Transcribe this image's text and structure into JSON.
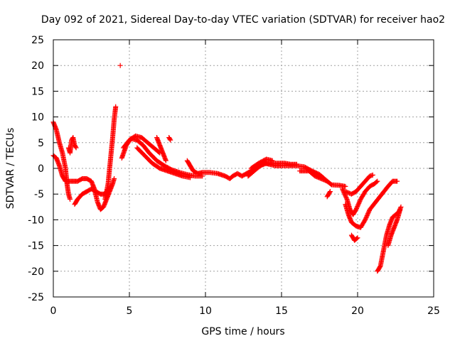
{
  "chart_data": {
    "type": "scatter",
    "title": "Day 092 of 2021, Sidereal Day-to-day VTEC variation (SDTVAR) for receiver hao2",
    "xlabel": "GPS time / hours",
    "ylabel": "SDTVAR / TECUs",
    "xlim": [
      0,
      25
    ],
    "ylim": [
      -25,
      25
    ],
    "xticks": [
      "0",
      "5",
      "10",
      "15",
      "20",
      "25"
    ],
    "yticks": [
      "25",
      "20",
      "15",
      "10",
      "5",
      "0",
      "-5",
      "-10",
      "-15",
      "-20",
      "-25"
    ],
    "grid": true,
    "marker": "plus",
    "series": [
      {
        "name": "SDTVAR",
        "color": "#ff0000",
        "segments": [
          [
            [
              0.0,
              9.0
            ],
            [
              0.2,
              7.5
            ],
            [
              0.4,
              5.0
            ],
            [
              0.6,
              3.0
            ],
            [
              0.8,
              0.0
            ],
            [
              0.9,
              -3.0
            ],
            [
              1.0,
              -5.0
            ],
            [
              1.1,
              -6.0
            ]
          ],
          [
            [
              0.0,
              2.5
            ],
            [
              0.2,
              2.0
            ],
            [
              0.4,
              0.5
            ],
            [
              0.6,
              -1.5
            ],
            [
              0.8,
              -2.5
            ],
            [
              1.0,
              -2.5
            ],
            [
              1.3,
              -2.5
            ],
            [
              1.6,
              -2.5
            ],
            [
              1.9,
              -2.0
            ],
            [
              2.2,
              -2.0
            ],
            [
              2.5,
              -2.5
            ],
            [
              2.7,
              -4.0
            ],
            [
              2.9,
              -6.5
            ],
            [
              3.1,
              -8.0
            ],
            [
              3.3,
              -7.5
            ],
            [
              3.5,
              -6.0
            ],
            [
              3.7,
              -4.5
            ],
            [
              3.9,
              -3.0
            ],
            [
              4.0,
              -2.0
            ]
          ],
          [
            [
              1.0,
              4.0
            ],
            [
              1.1,
              3.0
            ],
            [
              1.2,
              5.5
            ],
            [
              1.3,
              6.0
            ],
            [
              1.4,
              4.5
            ],
            [
              1.5,
              4.0
            ]
          ],
          [
            [
              1.4,
              -7.0
            ],
            [
              1.6,
              -6.0
            ],
            [
              1.9,
              -5.0
            ],
            [
              2.2,
              -4.5
            ],
            [
              2.5,
              -4.0
            ],
            [
              2.8,
              -4.5
            ],
            [
              3.1,
              -5.0
            ],
            [
              3.4,
              -5.0
            ],
            [
              3.6,
              -4.0
            ],
            [
              3.8,
              -3.5
            ]
          ],
          [
            [
              3.4,
              -6.0
            ],
            [
              3.6,
              -3.0
            ],
            [
              3.7,
              0.0
            ],
            [
              3.8,
              3.0
            ],
            [
              3.9,
              6.0
            ],
            [
              4.0,
              9.5
            ],
            [
              4.1,
              12.0
            ]
          ],
          [
            [
              4.4,
              20.0
            ]
          ],
          [
            [
              4.5,
              2.0
            ],
            [
              4.8,
              4.5
            ],
            [
              5.1,
              5.8
            ],
            [
              5.5,
              5.5
            ],
            [
              5.9,
              4.5
            ],
            [
              6.3,
              3.0
            ],
            [
              6.8,
              1.5
            ],
            [
              7.3,
              0.5
            ],
            [
              7.8,
              -0.3
            ],
            [
              8.3,
              -0.8
            ],
            [
              8.8,
              -1.2
            ],
            [
              9.3,
              -1.5
            ],
            [
              9.8,
              -1.5
            ]
          ],
          [
            [
              4.6,
              4.0
            ],
            [
              5.0,
              5.5
            ],
            [
              5.4,
              6.3
            ],
            [
              5.8,
              6.0
            ],
            [
              6.2,
              5.0
            ],
            [
              6.6,
              4.0
            ],
            [
              7.0,
              3.0
            ]
          ],
          [
            [
              5.5,
              4.0
            ],
            [
              6.0,
              2.5
            ],
            [
              6.5,
              1.0
            ],
            [
              7.0,
              0.0
            ],
            [
              7.5,
              -0.5
            ],
            [
              8.0,
              -1.0
            ],
            [
              8.5,
              -1.5
            ],
            [
              9.0,
              -1.8
            ]
          ],
          [
            [
              6.8,
              6.0
            ],
            [
              7.0,
              4.5
            ],
            [
              7.2,
              3.0
            ],
            [
              7.4,
              1.5
            ]
          ],
          [
            [
              7.6,
              6.0
            ],
            [
              7.7,
              5.5
            ]
          ],
          [
            [
              8.8,
              1.5
            ],
            [
              9.0,
              0.5
            ],
            [
              9.2,
              -0.5
            ],
            [
              9.5,
              -1.0
            ],
            [
              9.8,
              -0.8
            ],
            [
              10.3,
              -0.8
            ],
            [
              10.8,
              -1.0
            ],
            [
              11.3,
              -1.5
            ],
            [
              11.6,
              -2.0
            ],
            [
              11.8,
              -1.5
            ],
            [
              12.1,
              -1.0
            ],
            [
              12.4,
              -1.5
            ],
            [
              12.7,
              -1.0
            ],
            [
              13.0,
              -0.5
            ],
            [
              13.3,
              0.0
            ],
            [
              13.6,
              0.5
            ],
            [
              13.9,
              1.0
            ],
            [
              14.2,
              0.8
            ],
            [
              14.6,
              0.5
            ],
            [
              15.0,
              0.5
            ],
            [
              15.5,
              0.5
            ],
            [
              16.0,
              0.5
            ],
            [
              16.5,
              0.3
            ],
            [
              17.0,
              -0.5
            ],
            [
              17.5,
              -1.2
            ],
            [
              18.0,
              -2.5
            ],
            [
              18.3,
              -3.2
            ],
            [
              18.8,
              -3.3
            ],
            [
              19.2,
              -3.5
            ]
          ],
          [
            [
              12.8,
              -1.5
            ],
            [
              13.2,
              -0.5
            ],
            [
              13.6,
              0.5
            ],
            [
              14.0,
              1.0
            ],
            [
              14.4,
              1.0
            ],
            [
              14.8,
              1.0
            ],
            [
              15.2,
              1.0
            ],
            [
              15.6,
              0.8
            ],
            [
              16.0,
              0.8
            ]
          ],
          [
            [
              13.0,
              0.0
            ],
            [
              13.5,
              1.0
            ],
            [
              14.0,
              1.8
            ],
            [
              14.4,
              1.5
            ]
          ],
          [
            [
              16.2,
              -0.5
            ],
            [
              16.8,
              -0.5
            ],
            [
              17.2,
              -1.5
            ],
            [
              17.6,
              -2.0
            ],
            [
              18.0,
              -2.5
            ]
          ],
          [
            [
              18.0,
              -5.5
            ],
            [
              18.2,
              -4.5
            ]
          ],
          [
            [
              19.0,
              -4.0
            ],
            [
              19.3,
              -6.0
            ],
            [
              19.5,
              -8.0
            ],
            [
              19.7,
              -9.0
            ],
            [
              19.9,
              -8.0
            ],
            [
              20.2,
              -6.0
            ],
            [
              20.5,
              -4.5
            ],
            [
              20.8,
              -3.5
            ],
            [
              21.1,
              -3.0
            ],
            [
              21.3,
              -2.5
            ]
          ],
          [
            [
              19.2,
              -7.0
            ],
            [
              19.4,
              -9.0
            ],
            [
              19.6,
              -10.5
            ],
            [
              19.9,
              -11.2
            ],
            [
              20.2,
              -11.5
            ],
            [
              20.5,
              -10.0
            ],
            [
              20.8,
              -8.0
            ],
            [
              21.2,
              -6.5
            ],
            [
              21.6,
              -5.0
            ],
            [
              22.0,
              -3.5
            ],
            [
              22.3,
              -2.5
            ],
            [
              22.6,
              -2.5
            ]
          ],
          [
            [
              19.2,
              -4.5
            ],
            [
              19.6,
              -5.0
            ],
            [
              19.9,
              -4.5
            ],
            [
              20.2,
              -3.5
            ],
            [
              20.5,
              -2.5
            ],
            [
              20.8,
              -1.5
            ],
            [
              21.0,
              -1.3
            ]
          ],
          [
            [
              19.6,
              -13.0
            ],
            [
              19.8,
              -14.0
            ],
            [
              20.0,
              -13.5
            ]
          ],
          [
            [
              21.3,
              -20.0
            ],
            [
              21.5,
              -19.0
            ],
            [
              21.7,
              -16.0
            ],
            [
              21.9,
              -13.0
            ],
            [
              22.1,
              -11.0
            ],
            [
              22.3,
              -9.5
            ],
            [
              22.5,
              -9.0
            ],
            [
              22.7,
              -8.5
            ],
            [
              22.85,
              -7.5
            ]
          ],
          [
            [
              22.0,
              -15.0
            ],
            [
              22.2,
              -13.0
            ],
            [
              22.4,
              -11.5
            ],
            [
              22.6,
              -10.0
            ],
            [
              22.8,
              -8.0
            ]
          ]
        ]
      }
    ]
  }
}
